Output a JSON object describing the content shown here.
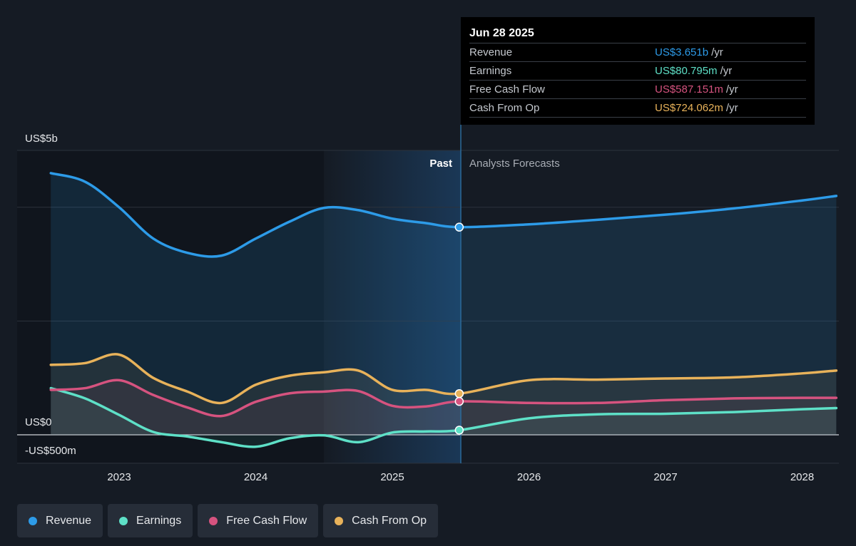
{
  "chart_data": {
    "type": "line",
    "y_labels": {
      "top": "US$5b",
      "zero": "US$0",
      "bottom": "-US$500m"
    },
    "ylim": [
      -500,
      5000
    ],
    "x_ticks": [
      "2023",
      "2024",
      "2025",
      "2026",
      "2027",
      "2028"
    ],
    "past_label": "Past",
    "forecast_label": "Analysts Forecasts",
    "divider_date": "2025.49",
    "series": [
      {
        "name": "Revenue",
        "color": "#2d9be8",
        "x": [
          2022.5,
          2022.75,
          2023.0,
          2023.25,
          2023.5,
          2023.75,
          2024.0,
          2024.25,
          2024.5,
          2024.75,
          2025.0,
          2025.25,
          2025.49,
          2026.0,
          2026.5,
          2027.0,
          2027.5,
          2028.0,
          2028.25
        ],
        "y": [
          4600,
          4450,
          4000,
          3450,
          3200,
          3150,
          3450,
          3750,
          3990,
          3950,
          3800,
          3720,
          3651,
          3700,
          3780,
          3870,
          3980,
          4120,
          4200
        ]
      },
      {
        "name": "Earnings",
        "color": "#5ee0c7",
        "x": [
          2022.5,
          2022.75,
          2023.0,
          2023.25,
          2023.5,
          2023.75,
          2024.0,
          2024.25,
          2024.5,
          2024.75,
          2025.0,
          2025.25,
          2025.49,
          2026.0,
          2026.5,
          2027.0,
          2027.5,
          2028.0,
          2028.25
        ],
        "y": [
          820,
          640,
          350,
          50,
          -30,
          -130,
          -210,
          -60,
          -10,
          -130,
          40,
          60,
          81,
          290,
          360,
          370,
          400,
          450,
          470
        ]
      },
      {
        "name": "Free Cash Flow",
        "color": "#d6537f",
        "x": [
          2022.5,
          2022.75,
          2023.0,
          2023.25,
          2023.5,
          2023.75,
          2024.0,
          2024.25,
          2024.5,
          2024.75,
          2025.0,
          2025.25,
          2025.49,
          2026.0,
          2026.5,
          2027.0,
          2027.5,
          2028.0,
          2028.25
        ],
        "y": [
          790,
          820,
          960,
          700,
          480,
          330,
          580,
          730,
          760,
          770,
          510,
          500,
          587,
          560,
          560,
          610,
          640,
          650,
          650
        ]
      },
      {
        "name": "Cash From Op",
        "color": "#e8b25a",
        "x": [
          2022.5,
          2022.75,
          2023.0,
          2023.25,
          2023.5,
          2023.75,
          2024.0,
          2024.25,
          2024.5,
          2024.75,
          2025.0,
          2025.25,
          2025.49,
          2026.0,
          2026.5,
          2027.0,
          2027.5,
          2028.0,
          2028.25
        ],
        "y": [
          1230,
          1260,
          1410,
          1000,
          760,
          560,
          880,
          1040,
          1100,
          1130,
          790,
          790,
          724,
          960,
          970,
          990,
          1010,
          1080,
          1130
        ]
      }
    ],
    "highlight_x": 2025.49,
    "grid": true
  },
  "tooltip": {
    "date": "Jun 28 2025",
    "rows": [
      {
        "label": "Revenue",
        "value": "US$3.651b",
        "unit": "/yr",
        "color": "#2d9be8"
      },
      {
        "label": "Earnings",
        "value": "US$80.795m",
        "unit": "/yr",
        "color": "#5ee0c7"
      },
      {
        "label": "Free Cash Flow",
        "value": "US$587.151m",
        "unit": "/yr",
        "color": "#d6537f"
      },
      {
        "label": "Cash From Op",
        "value": "US$724.062m",
        "unit": "/yr",
        "color": "#e8b25a"
      }
    ]
  },
  "legend": [
    {
      "label": "Revenue",
      "color": "#2d9be8"
    },
    {
      "label": "Earnings",
      "color": "#5ee0c7"
    },
    {
      "label": "Free Cash Flow",
      "color": "#d6537f"
    },
    {
      "label": "Cash From Op",
      "color": "#e8b25a"
    }
  ]
}
